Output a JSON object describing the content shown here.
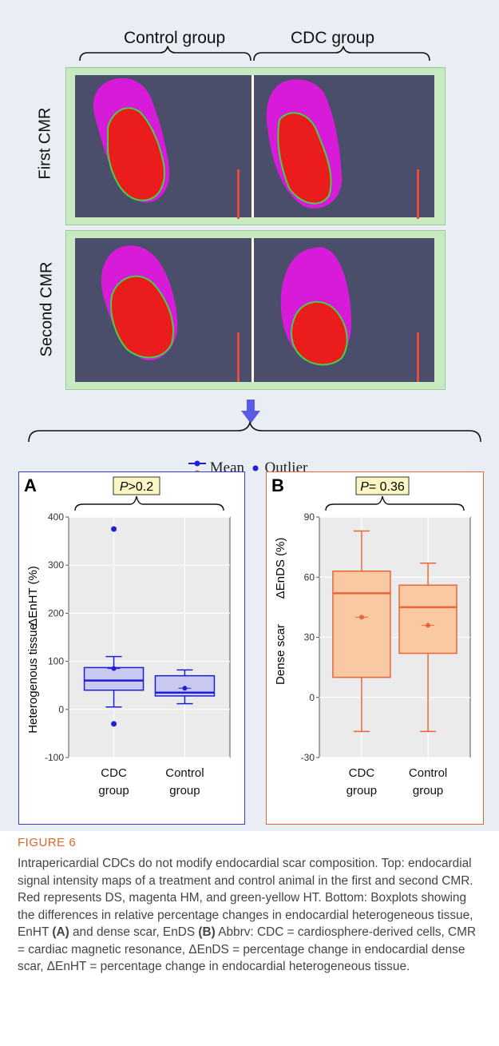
{
  "top": {
    "col_labels": [
      "Control group",
      "CDC group"
    ],
    "row_labels": [
      "First CMR",
      "Second CMR"
    ]
  },
  "legend": {
    "mean_label": "Mean",
    "outlier_label": "Outlier"
  },
  "figure": {
    "title": "FIGURE 6",
    "caption_parts": [
      "Intrapericardial CDCs do not modify endocardial scar composition. Top: endocardial signal intensity maps of a treatment and control animal in the first and second CMR. Red represents DS, magenta HM, and green-yellow HT. Bottom: Boxplots showing the differences in relative percentage changes in endocardial heterogeneous tissue, EnHT ",
      "(A)",
      " and dense scar, EnDS ",
      "(B)",
      " Abbrv: CDC = cardiosphere-derived cells, CMR = cardiac magnetic resonance, ΔEnDS = percentage change in endocardial dense scar, ΔEnHT = percentage change in endocardial heterogeneous tissue."
    ]
  },
  "colors": {
    "blue": "#1f1fd6",
    "orange": "#e8663a",
    "green_bg": "#c9eac1",
    "map_bg": "#4a4e6a"
  },
  "chart_data": [
    {
      "panel": "A",
      "type": "box",
      "pvalue_label": ">0.2",
      "ylabel_top": "ΔEnHT (%)",
      "ylabel_bottom": "Heterogenous tissue",
      "ylim": [
        -100,
        400
      ],
      "yticks": [
        -100,
        0,
        100,
        200,
        300,
        400
      ],
      "categories": [
        "CDC group",
        "Control group"
      ],
      "category_lines": [
        [
          "CDC",
          "group"
        ],
        [
          "Control",
          "group"
        ]
      ],
      "boxes": [
        {
          "whisker_low": 5,
          "q1": 40,
          "median": 60,
          "q3": 87,
          "whisker_high": 110,
          "mean": 85,
          "outliers": [
            375,
            -30
          ]
        },
        {
          "whisker_low": 12,
          "q1": 28,
          "median": 35,
          "q3": 70,
          "whisker_high": 82,
          "mean": 44,
          "outliers": []
        }
      ],
      "color": "#1f1fd6",
      "fill": "#c9c9f2"
    },
    {
      "panel": "B",
      "type": "box",
      "pvalue_label": "= 0.36",
      "ylabel_top": "ΔEnDS (%)",
      "ylabel_bottom": "Dense scar",
      "ylim": [
        -30,
        90
      ],
      "yticks": [
        -30,
        0,
        30,
        60,
        90
      ],
      "categories": [
        "CDC group",
        "Control group"
      ],
      "category_lines": [
        [
          "CDC",
          "group"
        ],
        [
          "Control",
          "group"
        ]
      ],
      "boxes": [
        {
          "whisker_low": -17,
          "q1": 10,
          "median": 52,
          "q3": 63,
          "whisker_high": 83,
          "mean": 40,
          "outliers": []
        },
        {
          "whisker_low": -17,
          "q1": 22,
          "median": 45,
          "q3": 56,
          "whisker_high": 67,
          "mean": 36,
          "outliers": []
        }
      ],
      "color": "#e8663a",
      "fill": "#f8c9a3"
    }
  ]
}
